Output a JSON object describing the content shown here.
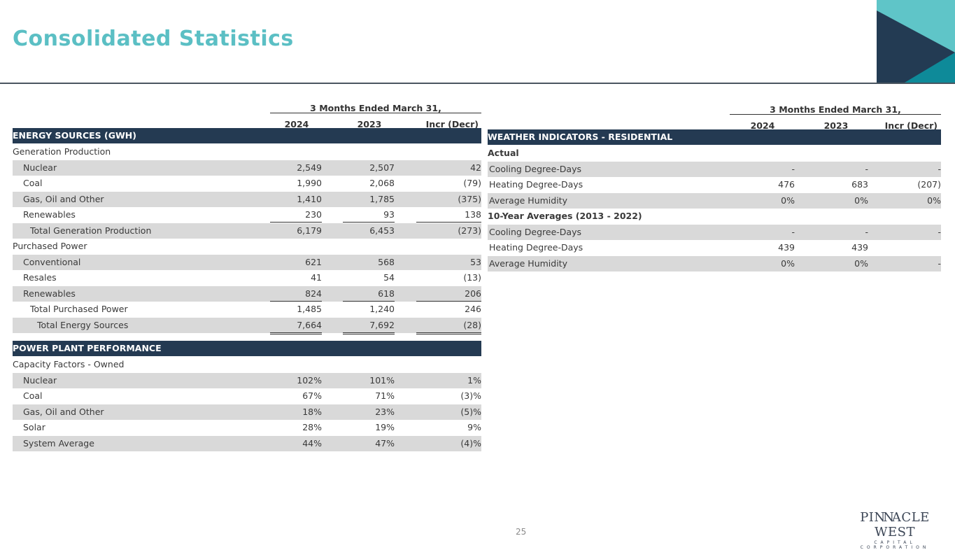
{
  "title": "Consolidated Statistics",
  "page_number": "25",
  "logo": {
    "line1": "PINNACLE WEST",
    "line2": "CAPITAL CORPORATION"
  },
  "colors": {
    "title": "#5bbfc4",
    "band": "#243a52",
    "stripe": "#d9d9d9",
    "teal": "#0e8a99",
    "light_teal": "#5fc5c8"
  },
  "left": {
    "period_header": "3 Months Ended March 31,",
    "columns": [
      "2024",
      "2023",
      "Incr (Decr)"
    ],
    "rows": [
      {
        "type": "band",
        "label": "ENERGY SOURCES (GWH)"
      },
      {
        "type": "section",
        "label": "Generation Production"
      },
      {
        "label": "Nuclear",
        "indent": 1,
        "values": [
          "2,549",
          "2,507",
          "42"
        ]
      },
      {
        "label": "Coal",
        "indent": 1,
        "values": [
          "1,990",
          "2,068",
          "(79)"
        ]
      },
      {
        "label": "Gas, Oil and Other",
        "indent": 1,
        "values": [
          "1,410",
          "1,785",
          "(375)"
        ]
      },
      {
        "label": "Renewables",
        "indent": 1,
        "values": [
          "230",
          "93",
          "138"
        ],
        "underline": "single"
      },
      {
        "label": "Total Generation Production",
        "indent": 2,
        "values": [
          "6,179",
          "6,453",
          "(273)"
        ]
      },
      {
        "type": "section",
        "label": "Purchased Power"
      },
      {
        "label": "Conventional",
        "indent": 1,
        "values": [
          "621",
          "568",
          "53"
        ]
      },
      {
        "label": "Resales",
        "indent": 1,
        "values": [
          "41",
          "54",
          "(13)"
        ]
      },
      {
        "label": "Renewables",
        "indent": 1,
        "values": [
          "824",
          "618",
          "206"
        ],
        "underline": "single"
      },
      {
        "label": "Total Purchased Power",
        "indent": 2,
        "values": [
          "1,485",
          "1,240",
          "246"
        ]
      },
      {
        "label": "Total Energy Sources",
        "indent": 3,
        "values": [
          "7,664",
          "7,692",
          "(28)"
        ],
        "underline": "double"
      },
      {
        "type": "gap"
      },
      {
        "type": "band",
        "label": "POWER PLANT PERFORMANCE"
      },
      {
        "type": "section",
        "label": "Capacity Factors - Owned"
      },
      {
        "label": "Nuclear",
        "indent": 1,
        "values": [
          "102%",
          "101%",
          "1%"
        ]
      },
      {
        "label": "Coal",
        "indent": 1,
        "values": [
          "67%",
          "71%",
          "(3)%"
        ]
      },
      {
        "label": "Gas, Oil and Other",
        "indent": 1,
        "values": [
          "18%",
          "23%",
          "(5)%"
        ]
      },
      {
        "label": "Solar",
        "indent": 1,
        "values": [
          "28%",
          "19%",
          "9%"
        ]
      },
      {
        "label": "System Average",
        "indent": 1,
        "values": [
          "44%",
          "47%",
          "(4)%"
        ]
      }
    ]
  },
  "right": {
    "period_header": "3 Months Ended March 31,",
    "columns": [
      "2024",
      "2023",
      "Incr (Decr)"
    ],
    "rows": [
      {
        "type": "band",
        "label": "WEATHER INDICATORS - RESIDENTIAL"
      },
      {
        "type": "section",
        "label": "Actual",
        "bold": true
      },
      {
        "label": "Cooling Degree-Days",
        "values": [
          "-",
          "-",
          "-"
        ]
      },
      {
        "label": "Heating Degree-Days",
        "values": [
          "476",
          "683",
          "(207)"
        ]
      },
      {
        "label": "Average Humidity",
        "values": [
          "0%",
          "0%",
          "0%"
        ]
      },
      {
        "type": "section",
        "label": "10-Year Averages (2013 - 2022)",
        "bold": true
      },
      {
        "label": "Cooling Degree-Days",
        "values": [
          "-",
          "-",
          "-"
        ]
      },
      {
        "label": "Heating Degree-Days",
        "values": [
          "439",
          "439",
          ""
        ]
      },
      {
        "label": "Average Humidity",
        "values": [
          "0%",
          "0%",
          "-"
        ]
      }
    ]
  }
}
